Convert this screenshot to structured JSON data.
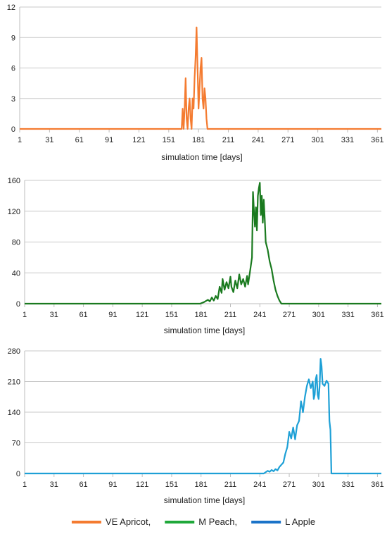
{
  "chart_data": [
    {
      "type": "line",
      "series": [
        {
          "name": "VE Apricot,",
          "color": "#f47b30",
          "points": [
            [
              1,
              0
            ],
            [
              160,
              0
            ],
            [
              164,
              0
            ],
            [
              165,
              2
            ],
            [
              166,
              0
            ],
            [
              167,
              2
            ],
            [
              168,
              5
            ],
            [
              169,
              1
            ],
            [
              170,
              0
            ],
            [
              171,
              2
            ],
            [
              172,
              3
            ],
            [
              173,
              1
            ],
            [
              174,
              0
            ],
            [
              175,
              3
            ],
            [
              176,
              2
            ],
            [
              177,
              5
            ],
            [
              178,
              7
            ],
            [
              179,
              10
            ],
            [
              180,
              6
            ],
            [
              181,
              2
            ],
            [
              182,
              4
            ],
            [
              183,
              6
            ],
            [
              184,
              7
            ],
            [
              185,
              3
            ],
            [
              186,
              2
            ],
            [
              187,
              4
            ],
            [
              188,
              3
            ],
            [
              189,
              1
            ],
            [
              190,
              0
            ],
            [
              365,
              0
            ]
          ]
        }
      ],
      "xlabel": "simulation time [days]",
      "xlim": [
        1,
        365
      ],
      "xticks": [
        1,
        31,
        61,
        91,
        121,
        151,
        181,
        211,
        241,
        271,
        301,
        331,
        361
      ],
      "ylim": [
        0,
        12
      ],
      "yticks": [
        0,
        3,
        6,
        9,
        12
      ],
      "grid": true
    },
    {
      "type": "line",
      "series": [
        {
          "name": "M Peach,",
          "color": "#1a7a1f",
          "points": [
            [
              1,
              0
            ],
            [
              180,
              0
            ],
            [
              184,
              2
            ],
            [
              188,
              5
            ],
            [
              190,
              3
            ],
            [
              192,
              8
            ],
            [
              194,
              4
            ],
            [
              196,
              10
            ],
            [
              198,
              6
            ],
            [
              200,
              22
            ],
            [
              202,
              14
            ],
            [
              203,
              32
            ],
            [
              205,
              18
            ],
            [
              207,
              28
            ],
            [
              209,
              20
            ],
            [
              211,
              35
            ],
            [
              212,
              22
            ],
            [
              214,
              15
            ],
            [
              216,
              30
            ],
            [
              218,
              20
            ],
            [
              220,
              38
            ],
            [
              222,
              25
            ],
            [
              224,
              32
            ],
            [
              226,
              22
            ],
            [
              228,
              36
            ],
            [
              229,
              25
            ],
            [
              231,
              42
            ],
            [
              233,
              60
            ],
            [
              234,
              145
            ],
            [
              235,
              120
            ],
            [
              236,
              100
            ],
            [
              237,
              125
            ],
            [
              238,
              95
            ],
            [
              239,
              140
            ],
            [
              240,
              150
            ],
            [
              241,
              157
            ],
            [
              242,
              115
            ],
            [
              243,
              140
            ],
            [
              244,
              105
            ],
            [
              245,
              135
            ],
            [
              246,
              110
            ],
            [
              247,
              80
            ],
            [
              249,
              70
            ],
            [
              251,
              55
            ],
            [
              253,
              45
            ],
            [
              255,
              30
            ],
            [
              257,
              18
            ],
            [
              259,
              10
            ],
            [
              261,
              4
            ],
            [
              263,
              0
            ],
            [
              365,
              0
            ]
          ]
        }
      ],
      "xlabel": "simulation time [days]",
      "xlim": [
        1,
        365
      ],
      "xticks": [
        1,
        31,
        61,
        91,
        121,
        151,
        181,
        211,
        241,
        271,
        301,
        331,
        361
      ],
      "ylim": [
        0,
        160
      ],
      "yticks": [
        0,
        40,
        80,
        120,
        160
      ],
      "grid": true
    },
    {
      "type": "line",
      "series": [
        {
          "name": "L Apple",
          "color": "#1ea0d6",
          "points": [
            [
              1,
              0
            ],
            [
              245,
              0
            ],
            [
              247,
              3
            ],
            [
              249,
              6
            ],
            [
              251,
              4
            ],
            [
              253,
              8
            ],
            [
              255,
              5
            ],
            [
              257,
              10
            ],
            [
              259,
              7
            ],
            [
              261,
              15
            ],
            [
              263,
              20
            ],
            [
              265,
              25
            ],
            [
              267,
              45
            ],
            [
              269,
              60
            ],
            [
              271,
              95
            ],
            [
              273,
              80
            ],
            [
              275,
              105
            ],
            [
              277,
              78
            ],
            [
              279,
              110
            ],
            [
              281,
              120
            ],
            [
              283,
              165
            ],
            [
              285,
              140
            ],
            [
              287,
              175
            ],
            [
              289,
              200
            ],
            [
              291,
              215
            ],
            [
              293,
              195
            ],
            [
              295,
              210
            ],
            [
              296,
              170
            ],
            [
              297,
              180
            ],
            [
              298,
              215
            ],
            [
              299,
              225
            ],
            [
              300,
              180
            ],
            [
              301,
              170
            ],
            [
              302,
              200
            ],
            [
              303,
              262
            ],
            [
              304,
              245
            ],
            [
              305,
              205
            ],
            [
              307,
              200
            ],
            [
              309,
              212
            ],
            [
              311,
              205
            ],
            [
              312,
              120
            ],
            [
              313,
              100
            ],
            [
              314,
              0
            ],
            [
              365,
              0
            ]
          ]
        }
      ],
      "xlabel": "simulation time [days]",
      "xlim": [
        1,
        365
      ],
      "xticks": [
        1,
        31,
        61,
        91,
        121,
        151,
        181,
        211,
        241,
        271,
        301,
        331,
        361
      ],
      "ylim": [
        0,
        280
      ],
      "yticks": [
        0,
        70,
        140,
        210,
        280
      ],
      "grid": true
    }
  ],
  "legend": {
    "placement": "bottom",
    "items": [
      {
        "label": "VE Apricot,",
        "color": "#f47b30"
      },
      {
        "label": "M Peach,",
        "color": "#1fa83a"
      },
      {
        "label": "L Apple",
        "color": "#1a73c8"
      }
    ]
  }
}
